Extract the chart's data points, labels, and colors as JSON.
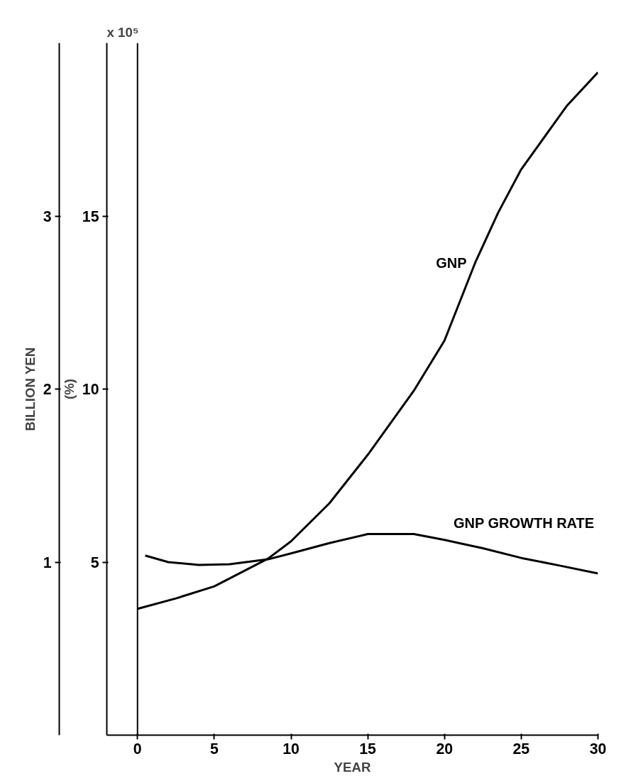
{
  "chart_data": {
    "type": "line",
    "xlabel": "YEAR",
    "ylabel": "BILLION YEN",
    "y2label": "(%)",
    "annotations": [
      "x 10⁵"
    ],
    "xlim": [
      -2,
      30
    ],
    "xticks": [
      0,
      5,
      10,
      15,
      20,
      25,
      30
    ],
    "ylim": [
      0,
      4
    ],
    "yticks": [
      1,
      2,
      3
    ],
    "y2lim": [
      0,
      20
    ],
    "y2ticks": [
      5,
      10,
      15
    ],
    "grid": false,
    "ref_lines": [
      {
        "axis": "x",
        "value": 0,
        "label": null,
        "color": "#000000"
      }
    ],
    "series": [
      {
        "name": "GNP",
        "color": "#000000",
        "x": [
          0,
          2.5,
          5,
          8.5,
          10,
          12.5,
          15,
          18,
          20,
          22,
          23.5,
          25,
          28,
          30
        ],
        "values": [
          0.73,
          0.79,
          0.86,
          1.02,
          1.12,
          1.34,
          1.62,
          1.99,
          2.28,
          2.73,
          3.02,
          3.27,
          3.64,
          3.83
        ]
      },
      {
        "name": "GNP GROWTH RATE",
        "color": "#000000",
        "axis": "y2",
        "x": [
          0.5,
          2,
          4,
          6,
          8.5,
          10,
          12.5,
          15,
          18,
          20,
          22.5,
          25,
          27.5,
          30
        ],
        "values": [
          5.19,
          5.0,
          4.92,
          4.94,
          5.08,
          5.25,
          5.55,
          5.81,
          5.81,
          5.64,
          5.4,
          5.12,
          4.9,
          4.67
        ]
      }
    ]
  }
}
